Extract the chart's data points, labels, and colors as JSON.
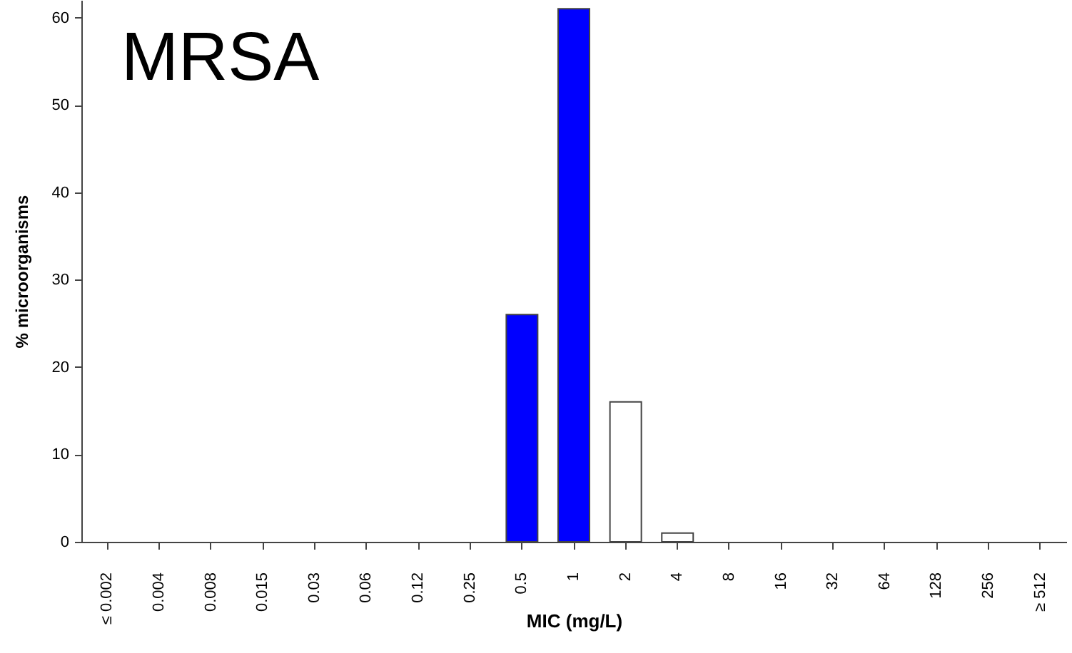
{
  "chart_data": {
    "type": "bar",
    "annotations": [
      "MRSA"
    ],
    "xlabel": "MIC (mg/L)",
    "ylabel": "% microorganisms",
    "categories": [
      "≤ 0.002",
      "0.004",
      "0.008",
      "0.015",
      "0.03",
      "0.06",
      "0.12",
      "0.25",
      "0.5",
      "1",
      "2",
      "4",
      "8",
      "16",
      "32",
      "64",
      "128",
      "256",
      "≥ 512"
    ],
    "values": [
      0,
      0,
      0,
      0,
      0,
      0,
      0,
      0,
      26,
      61,
      16,
      1,
      0,
      0,
      0,
      0,
      0,
      0,
      0
    ],
    "colors": [
      "#ffffff",
      "#ffffff",
      "#ffffff",
      "#ffffff",
      "#ffffff",
      "#ffffff",
      "#ffffff",
      "#ffffff",
      "#0000ff",
      "#0000ff",
      "#ffffff",
      "#ffffff",
      "#ffffff",
      "#ffffff",
      "#ffffff",
      "#ffffff",
      "#ffffff",
      "#ffffff",
      "#ffffff"
    ],
    "ylim": [
      0,
      62
    ],
    "yticks": [
      0,
      10,
      20,
      30,
      40,
      50,
      60
    ],
    "grid": false
  }
}
